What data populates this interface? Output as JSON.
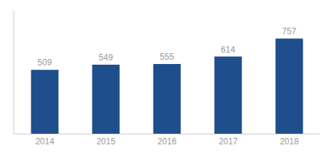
{
  "chart_data": {
    "type": "bar",
    "categories": [
      "2014",
      "2015",
      "2016",
      "2017",
      "2018"
    ],
    "values": [
      509,
      549,
      555,
      614,
      757
    ],
    "color": "#1f4e8c",
    "ylim": [
      0,
      980
    ],
    "data_labels": true,
    "tick_labels": "x",
    "grid": false
  }
}
